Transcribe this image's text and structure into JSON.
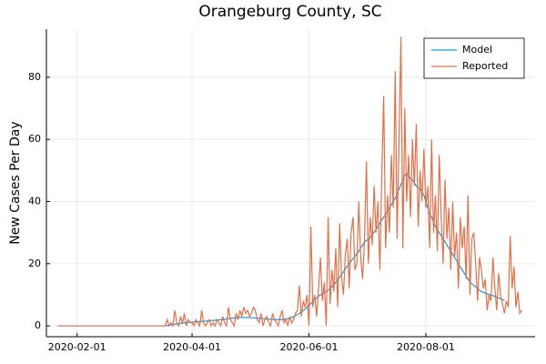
{
  "chart_data": {
    "type": "line",
    "title": "Orangeburg County, SC",
    "y_label": "New Cases Per Day",
    "x": [
      "2020-01-22",
      "2020-01-23",
      "2020-01-24",
      "2020-01-25",
      "2020-01-26",
      "2020-01-27",
      "2020-01-28",
      "2020-01-29",
      "2020-01-30",
      "2020-01-31",
      "2020-02-01",
      "2020-02-02",
      "2020-02-03",
      "2020-02-04",
      "2020-02-05",
      "2020-02-06",
      "2020-02-07",
      "2020-02-08",
      "2020-02-09",
      "2020-02-10",
      "2020-02-11",
      "2020-02-12",
      "2020-02-13",
      "2020-02-14",
      "2020-02-15",
      "2020-02-16",
      "2020-02-17",
      "2020-02-18",
      "2020-02-19",
      "2020-02-20",
      "2020-02-21",
      "2020-02-22",
      "2020-02-23",
      "2020-02-24",
      "2020-02-25",
      "2020-02-26",
      "2020-02-27",
      "2020-02-28",
      "2020-02-29",
      "2020-03-01",
      "2020-03-02",
      "2020-03-03",
      "2020-03-04",
      "2020-03-05",
      "2020-03-06",
      "2020-03-07",
      "2020-03-08",
      "2020-03-09",
      "2020-03-10",
      "2020-03-11",
      "2020-03-12",
      "2020-03-13",
      "2020-03-14",
      "2020-03-15",
      "2020-03-16",
      "2020-03-17",
      "2020-03-18",
      "2020-03-19",
      "2020-03-20",
      "2020-03-21",
      "2020-03-22",
      "2020-03-23",
      "2020-03-24",
      "2020-03-25",
      "2020-03-26",
      "2020-03-27",
      "2020-03-28",
      "2020-03-29",
      "2020-03-30",
      "2020-03-31",
      "2020-04-01",
      "2020-04-02",
      "2020-04-03",
      "2020-04-04",
      "2020-04-05",
      "2020-04-06",
      "2020-04-07",
      "2020-04-08",
      "2020-04-09",
      "2020-04-10",
      "2020-04-11",
      "2020-04-12",
      "2020-04-13",
      "2020-04-14",
      "2020-04-15",
      "2020-04-16",
      "2020-04-17",
      "2020-04-18",
      "2020-04-19",
      "2020-04-20",
      "2020-04-21",
      "2020-04-22",
      "2020-04-23",
      "2020-04-24",
      "2020-04-25",
      "2020-04-26",
      "2020-04-27",
      "2020-04-28",
      "2020-04-29",
      "2020-04-30",
      "2020-05-01",
      "2020-05-02",
      "2020-05-03",
      "2020-05-04",
      "2020-05-05",
      "2020-05-06",
      "2020-05-07",
      "2020-05-08",
      "2020-05-09",
      "2020-05-10",
      "2020-05-11",
      "2020-05-12",
      "2020-05-13",
      "2020-05-14",
      "2020-05-15",
      "2020-05-16",
      "2020-05-17",
      "2020-05-18",
      "2020-05-19",
      "2020-05-20",
      "2020-05-21",
      "2020-05-22",
      "2020-05-23",
      "2020-05-24",
      "2020-05-25",
      "2020-05-26",
      "2020-05-27",
      "2020-05-28",
      "2020-05-29",
      "2020-05-30",
      "2020-05-31",
      "2020-06-01",
      "2020-06-02",
      "2020-06-03",
      "2020-06-04",
      "2020-06-05",
      "2020-06-06",
      "2020-06-07",
      "2020-06-08",
      "2020-06-09",
      "2020-06-10",
      "2020-06-11",
      "2020-06-12",
      "2020-06-13",
      "2020-06-14",
      "2020-06-15",
      "2020-06-16",
      "2020-06-17",
      "2020-06-18",
      "2020-06-19",
      "2020-06-20",
      "2020-06-21",
      "2020-06-22",
      "2020-06-23",
      "2020-06-24",
      "2020-06-25",
      "2020-06-26",
      "2020-06-27",
      "2020-06-28",
      "2020-06-29",
      "2020-06-30",
      "2020-07-01",
      "2020-07-02",
      "2020-07-03",
      "2020-07-04",
      "2020-07-05",
      "2020-07-06",
      "2020-07-07",
      "2020-07-08",
      "2020-07-09",
      "2020-07-10",
      "2020-07-11",
      "2020-07-12",
      "2020-07-13",
      "2020-07-14",
      "2020-07-15",
      "2020-07-16",
      "2020-07-17",
      "2020-07-18",
      "2020-07-19",
      "2020-07-20",
      "2020-07-21",
      "2020-07-22",
      "2020-07-23",
      "2020-07-24",
      "2020-07-25",
      "2020-07-26",
      "2020-07-27",
      "2020-07-28",
      "2020-07-29",
      "2020-07-30",
      "2020-07-31",
      "2020-08-01",
      "2020-08-02",
      "2020-08-03",
      "2020-08-04",
      "2020-08-05",
      "2020-08-06",
      "2020-08-07",
      "2020-08-08",
      "2020-08-09",
      "2020-08-10",
      "2020-08-11",
      "2020-08-12",
      "2020-08-13",
      "2020-08-14",
      "2020-08-15",
      "2020-08-16",
      "2020-08-17",
      "2020-08-18",
      "2020-08-19",
      "2020-08-20",
      "2020-08-21",
      "2020-08-22",
      "2020-08-23",
      "2020-08-24",
      "2020-08-25",
      "2020-08-26",
      "2020-08-27",
      "2020-08-28",
      "2020-08-29",
      "2020-08-30",
      "2020-08-31",
      "2020-09-01",
      "2020-09-02",
      "2020-09-03",
      "2020-09-04",
      "2020-09-05",
      "2020-09-06",
      "2020-09-07",
      "2020-09-08",
      "2020-09-09",
      "2020-09-10",
      "2020-09-11",
      "2020-09-12",
      "2020-09-13",
      "2020-09-14",
      "2020-09-15",
      "2020-09-16",
      "2020-09-17",
      "2020-09-18",
      "2020-09-19",
      "2020-09-20"
    ],
    "series": [
      {
        "name": "Model",
        "color": "#0b9ae6",
        "values": [
          0,
          0,
          0,
          0,
          0,
          0,
          0,
          0,
          0,
          0,
          0,
          0,
          0,
          0,
          0,
          0,
          0,
          0,
          0,
          0,
          0,
          0,
          0,
          0,
          0,
          0,
          0,
          0,
          0,
          0,
          0,
          0,
          0,
          0,
          0,
          0,
          0,
          0,
          0,
          0,
          0,
          0,
          0,
          0,
          0,
          0,
          0,
          0,
          0,
          0,
          0,
          0,
          0,
          0,
          0,
          0,
          0,
          0.1,
          0.2,
          0.3,
          0.4,
          0.5,
          0.6,
          0.7,
          0.8,
          0.9,
          1.0,
          1.0,
          1.1,
          1.1,
          1.2,
          1.2,
          1.3,
          1.3,
          1.4,
          1.4,
          1.5,
          1.5,
          1.6,
          1.6,
          1.7,
          1.7,
          1.8,
          1.8,
          1.9,
          2.0,
          2.0,
          2.1,
          2.2,
          2.3,
          2.4,
          2.5,
          2.5,
          2.6,
          2.6,
          2.7,
          2.7,
          2.7,
          2.7,
          2.7,
          2.7,
          2.6,
          2.6,
          2.5,
          2.5,
          2.4,
          2.4,
          2.3,
          2.3,
          2.2,
          2.2,
          2.1,
          2.1,
          2.0,
          2.0,
          2.0,
          2.0,
          2.0,
          2.1,
          2.2,
          2.3,
          2.5,
          2.7,
          3.0,
          3.3,
          3.6,
          4.0,
          4.4,
          4.9,
          5.4,
          6.0,
          6.6,
          7.2,
          7.8,
          8.4,
          9.0,
          9.5,
          10.0,
          10.3,
          10.6,
          11.0,
          11.5,
          12.0,
          12.6,
          13.2,
          14.0,
          14.8,
          15.6,
          16.5,
          17.4,
          18.3,
          19.2,
          20.0,
          20.8,
          21.6,
          22.4,
          23.2,
          24.0,
          25.0,
          26.0,
          27.0,
          27.5,
          27.8,
          28.5,
          29.3,
          30.2,
          31.0,
          32.0,
          33.0,
          34.0,
          35.0,
          36.0,
          37.0,
          38.0,
          39.0,
          40.0,
          41.0,
          42.5,
          44.0,
          45.5,
          47.0,
          48.5,
          49.0,
          48.0,
          47.5,
          47.0,
          46.0,
          45.0,
          44.5,
          44.0,
          43.0,
          42.0,
          40.0,
          38.0,
          36.0,
          35.0,
          33.5,
          32.0,
          31.0,
          30.0,
          29.0,
          28.0,
          27.0,
          26.0,
          25.0,
          24.0,
          23.0,
          22.0,
          21.0,
          20.0,
          19.0,
          18.0,
          17.0,
          16.0,
          15.0,
          14.0,
          13.5,
          13.0,
          12.5,
          12.0,
          11.5,
          11.0,
          10.8,
          10.5,
          10.3,
          10.1,
          9.9,
          9.7,
          9.5,
          9.2,
          9.0,
          8.7,
          8.4,
          8.2,
          null,
          null,
          null,
          null,
          null,
          null,
          null,
          null,
          null
        ]
      },
      {
        "name": "Reported",
        "color": "#e26f46",
        "values": [
          0,
          0,
          0,
          0,
          0,
          0,
          0,
          0,
          0,
          0,
          0,
          0,
          0,
          0,
          0,
          0,
          0,
          0,
          0,
          0,
          0,
          0,
          0,
          0,
          0,
          0,
          0,
          0,
          0,
          0,
          0,
          0,
          0,
          0,
          0,
          0,
          0,
          0,
          0,
          0,
          0,
          0,
          0,
          0,
          0,
          0,
          0,
          0,
          0,
          0,
          0,
          0,
          0,
          0,
          0,
          0,
          0,
          2,
          0,
          1,
          0,
          5,
          1,
          0,
          3,
          1,
          4,
          0,
          2,
          1,
          1,
          0,
          2,
          1,
          0,
          5,
          1,
          0,
          1,
          2,
          0,
          1,
          0,
          2,
          1,
          0,
          3,
          1,
          0,
          6,
          2,
          1,
          0,
          4,
          2,
          5,
          3,
          6,
          4,
          5,
          3,
          4,
          6,
          5,
          2,
          1,
          4,
          0,
          2,
          3,
          1,
          0,
          4,
          2,
          1,
          0,
          3,
          5,
          1,
          2,
          0,
          3,
          1,
          2,
          4,
          5,
          13,
          3,
          8,
          6,
          10,
          0,
          32,
          6,
          10,
          3,
          12,
          22,
          8,
          14,
          0,
          35,
          7,
          18,
          11,
          25,
          6,
          33,
          16,
          10,
          23,
          28,
          12,
          30,
          35,
          18,
          20,
          40,
          22,
          15,
          28,
          53,
          20,
          35,
          26,
          45,
          30,
          40,
          18,
          48,
          74,
          25,
          42,
          30,
          55,
          38,
          82,
          28,
          60,
          93,
          25,
          70,
          40,
          55,
          35,
          60,
          45,
          65,
          32,
          50,
          40,
          57,
          38,
          45,
          25,
          60,
          30,
          42,
          24,
          55,
          35,
          20,
          47,
          28,
          38,
          18,
          40,
          22,
          30,
          12,
          35,
          25,
          32,
          15,
          42,
          10,
          28,
          30,
          20,
          8,
          22,
          18,
          12,
          15,
          5,
          10,
          8,
          22,
          12,
          5,
          17,
          10,
          7,
          4,
          8,
          6,
          29,
          12,
          19,
          6,
          11,
          4,
          5
        ]
      }
    ],
    "xlim": [
      "2020-01-16",
      "2020-09-27"
    ],
    "xticks": [
      "2020-02-01",
      "2020-04-01",
      "2020-06-01",
      "2020-08-01"
    ],
    "ylim": [
      -3.5,
      95.5
    ],
    "yticks": [
      0,
      20,
      40,
      60,
      80
    ],
    "grid": true,
    "legend": "top-right"
  }
}
